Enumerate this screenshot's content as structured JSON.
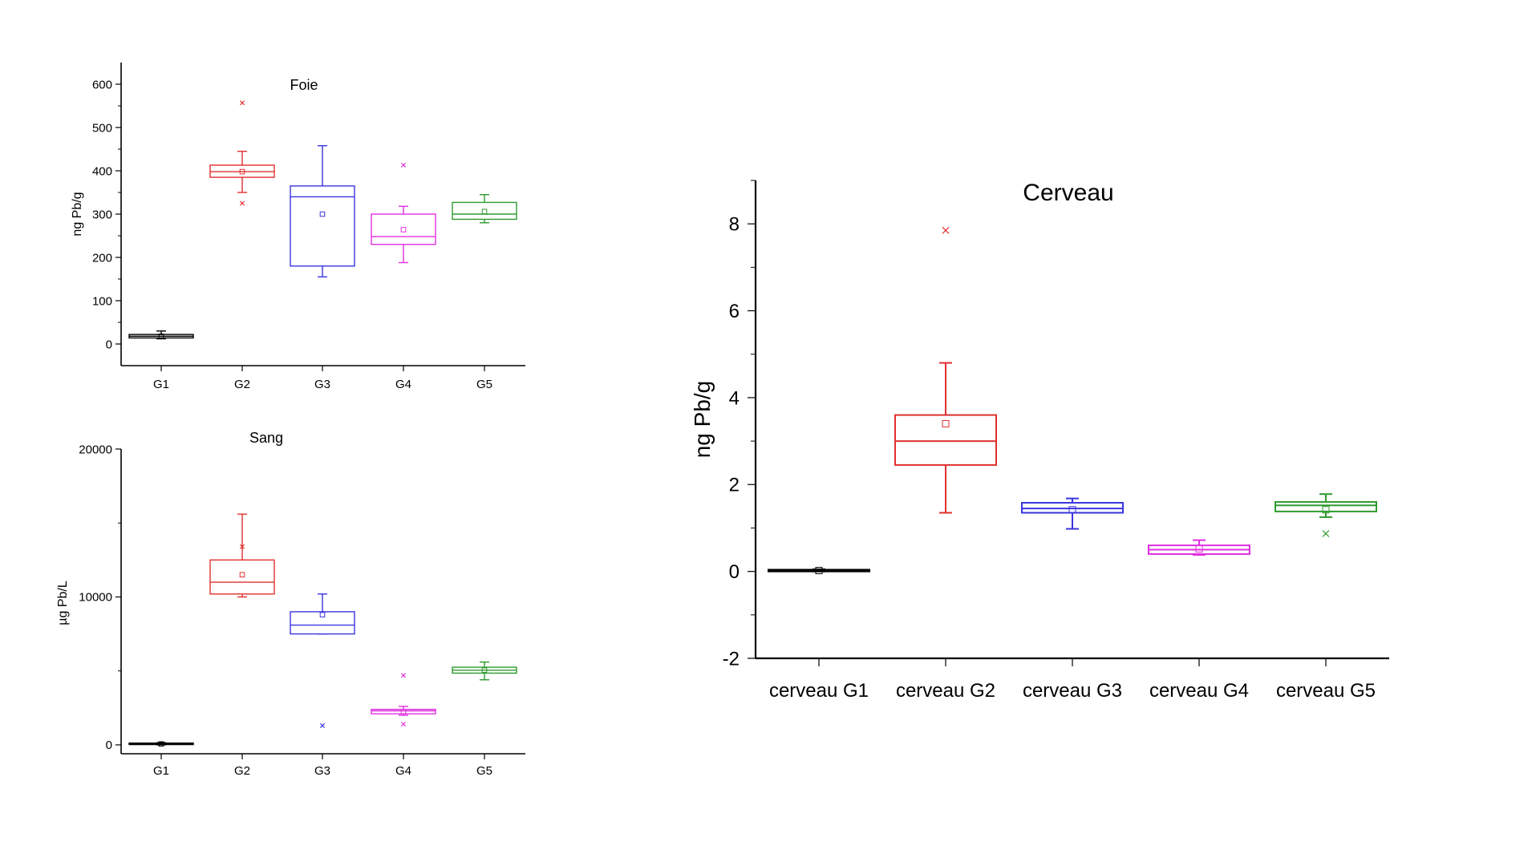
{
  "chart_data": [
    {
      "id": "foie",
      "type": "box",
      "title": "Foie",
      "ylabel": "ng Pb/g",
      "xlabel": "",
      "ylim": [
        -50,
        650
      ],
      "yticks": [
        0,
        100,
        200,
        300,
        400,
        500,
        600
      ],
      "categories": [
        "G1",
        "G2",
        "G3",
        "G4",
        "G5"
      ],
      "boxes": [
        {
          "name": "G1",
          "color": "#000000",
          "q1": 14,
          "median": 18,
          "q3": 22,
          "whisker_low": 12,
          "whisker_high": 30,
          "mean": 18,
          "outliers": []
        },
        {
          "name": "G2",
          "color": "#e0302f",
          "q1": 385,
          "median": 398,
          "q3": 413,
          "whisker_low": 350,
          "whisker_high": 445,
          "mean": 398,
          "outliers": [
            557,
            325
          ]
        },
        {
          "name": "G3",
          "color": "#3b35e0",
          "q1": 180,
          "median": 340,
          "q3": 365,
          "whisker_low": 155,
          "whisker_high": 458,
          "mean": 300,
          "outliers": []
        },
        {
          "name": "G4",
          "color": "#e030e0",
          "q1": 230,
          "median": 248,
          "q3": 300,
          "whisker_low": 188,
          "whisker_high": 318,
          "mean": 264,
          "outliers": [
            413
          ]
        },
        {
          "name": "G5",
          "color": "#2e9a2e",
          "q1": 288,
          "median": 300,
          "q3": 327,
          "whisker_low": 280,
          "whisker_high": 345,
          "mean": 306,
          "outliers": []
        }
      ]
    },
    {
      "id": "sang",
      "type": "box",
      "title": "Sang",
      "ylabel": "µg Pb/L",
      "xlabel": "",
      "ylim": [
        -600,
        20000
      ],
      "yticks": [
        0,
        10000,
        20000
      ],
      "yticks_minor": [
        5000,
        15000
      ],
      "categories": [
        "G1",
        "G2",
        "G3",
        "G4",
        "G5"
      ],
      "boxes": [
        {
          "name": "G1",
          "color": "#000000",
          "q1": 20,
          "median": 60,
          "q3": 120,
          "whisker_low": 0,
          "whisker_high": 150,
          "mean": 60,
          "outliers": []
        },
        {
          "name": "G2",
          "color": "#e0302f",
          "q1": 10200,
          "median": 11000,
          "q3": 12500,
          "whisker_low": 10000,
          "whisker_high": 15600,
          "mean": 11500,
          "outliers": [
            13400
          ]
        },
        {
          "name": "G3",
          "color": "#3b35e0",
          "q1": 7500,
          "median": 8100,
          "q3": 9000,
          "whisker_low": 7500,
          "whisker_high": 10200,
          "mean": 8800,
          "outliers": [
            1300
          ]
        },
        {
          "name": "G4",
          "color": "#e030e0",
          "q1": 2100,
          "median": 2300,
          "q3": 2400,
          "whisker_low": 2000,
          "whisker_high": 2600,
          "mean": 2250,
          "outliers": [
            4700,
            1400
          ]
        },
        {
          "name": "G5",
          "color": "#2e9a2e",
          "q1": 4850,
          "median": 5050,
          "q3": 5250,
          "whisker_low": 4400,
          "whisker_high": 5600,
          "mean": 5050,
          "outliers": []
        }
      ]
    },
    {
      "id": "cerveau",
      "type": "box",
      "title": "Cerveau",
      "ylabel": "ng Pb/g",
      "xlabel": "",
      "ylim": [
        -2,
        9
      ],
      "yticks": [
        -2,
        0,
        2,
        4,
        6,
        8
      ],
      "yticks_minor": [
        -1,
        1,
        3,
        5,
        7,
        9
      ],
      "categories": [
        "cerveau G1",
        "cerveau G2",
        "cerveau G3",
        "cerveau G4",
        "cerveau G5"
      ],
      "boxes": [
        {
          "name": "cerveau G1",
          "color": "#000000",
          "q1": 0.0,
          "median": 0.02,
          "q3": 0.04,
          "whisker_low": 0.0,
          "whisker_high": 0.05,
          "mean": 0.02,
          "outliers": []
        },
        {
          "name": "cerveau G2",
          "color": "#e0302f",
          "q1": 2.45,
          "median": 3.0,
          "q3": 3.6,
          "whisker_low": 1.35,
          "whisker_high": 4.8,
          "mean": 3.4,
          "outliers": [
            7.85
          ]
        },
        {
          "name": "cerveau G3",
          "color": "#3b35e0",
          "q1": 1.35,
          "median": 1.45,
          "q3": 1.58,
          "whisker_low": 0.98,
          "whisker_high": 1.68,
          "mean": 1.42,
          "outliers": []
        },
        {
          "name": "cerveau G4",
          "color": "#e030e0",
          "q1": 0.4,
          "median": 0.5,
          "q3": 0.6,
          "whisker_low": 0.38,
          "whisker_high": 0.72,
          "mean": 0.52,
          "outliers": []
        },
        {
          "name": "cerveau G5",
          "color": "#2e9a2e",
          "q1": 1.38,
          "median": 1.52,
          "q3": 1.6,
          "whisker_low": 1.25,
          "whisker_high": 1.78,
          "mean": 1.42,
          "outliers": [
            0.87
          ]
        }
      ]
    }
  ]
}
